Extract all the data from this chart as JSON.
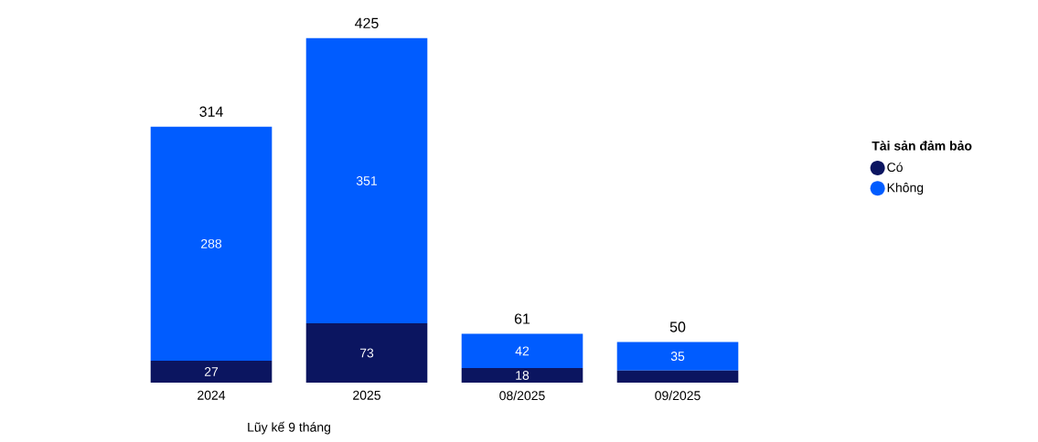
{
  "chart_data": {
    "type": "bar",
    "stacked": true,
    "categories": [
      "2024",
      "2025",
      "08/2025",
      "09/2025"
    ],
    "legend_title": "Tài sản đảm bảo",
    "legend": "right",
    "series": [
      {
        "name": "Có",
        "color": "#0b1560",
        "values": [
          27,
          73,
          18,
          15
        ],
        "value_labels": [
          "27",
          "73",
          "18",
          null
        ]
      },
      {
        "name": "Không",
        "color": "#005cff",
        "values": [
          288,
          351,
          42,
          35
        ],
        "value_labels": [
          "288",
          "351",
          "42",
          "35"
        ]
      }
    ],
    "totals": [
      "314",
      "425",
      "61",
      "50"
    ],
    "annotations": [
      "Lũy kế 9 tháng"
    ]
  }
}
